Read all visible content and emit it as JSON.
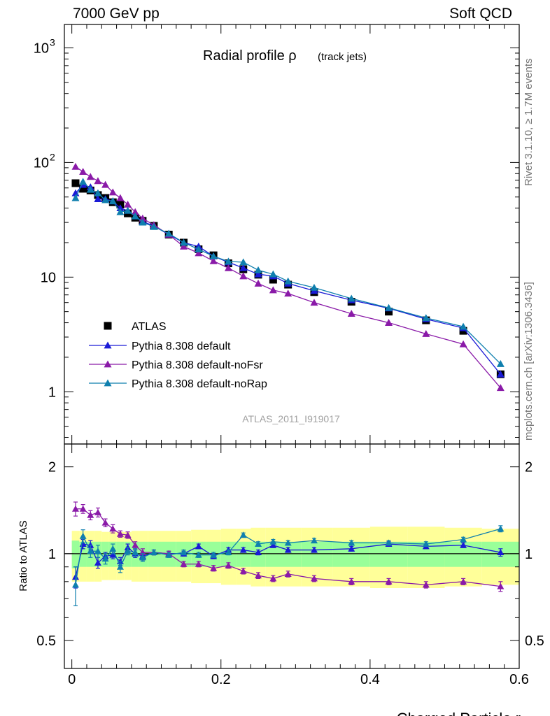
{
  "header": {
    "left": "7000 GeV pp",
    "right": "Soft QCD"
  },
  "side_labels": {
    "rivet": "Rivet 3.1.10, ≥ 1.7M events",
    "mcplots": "mcplots.cern.ch [arXiv:1306.3436]"
  },
  "chart_data": {
    "type": "scatter",
    "title_main": "Radial profile ρ",
    "title_sub": "(track jets)",
    "analysis_id": "ATLAS_2011_I919017",
    "xlabel": "Charged Particle r",
    "ratio_ylabel": "Ratio to ATLAS",
    "xlim": [
      -0.01,
      0.6
    ],
    "ylim_main": [
      0.35,
      1600
    ],
    "ylog_main": true,
    "ylim_ratio": [
      0.4,
      2.4
    ],
    "ylog_ratio": true,
    "x_ticks": [
      0,
      0.2,
      0.4,
      0.6
    ],
    "x_tick_labels": [
      "0",
      "0.2",
      "0.4",
      "0.6"
    ],
    "main_y_ticks": [
      1,
      10,
      100,
      1000
    ],
    "main_y_tick_labels": [
      "1",
      "10",
      "10",
      "10"
    ],
    "main_y_tick_exponents": [
      "",
      "",
      "2",
      "3"
    ],
    "ratio_y_ticks": [
      0.5,
      1,
      2
    ],
    "ratio_y_tick_labels": [
      "0.5",
      "1",
      "2"
    ],
    "legend_position": "bottom-left",
    "x": [
      0.005,
      0.015,
      0.025,
      0.035,
      0.045,
      0.055,
      0.065,
      0.075,
      0.085,
      0.095,
      0.11,
      0.13,
      0.15,
      0.17,
      0.19,
      0.21,
      0.23,
      0.25,
      0.27,
      0.29,
      0.325,
      0.375,
      0.425,
      0.475,
      0.525,
      0.575
    ],
    "series": [
      {
        "name": "ATLAS",
        "marker": "square",
        "color": "#000000",
        "values": [
          66,
          59,
          57,
          52,
          49,
          45,
          43,
          36,
          33,
          31,
          28,
          23.5,
          20,
          17.5,
          15.5,
          13.2,
          11.7,
          10.5,
          9.5,
          8.6,
          7.4,
          6.1,
          5.0,
          4.2,
          3.4,
          1.42
        ],
        "band_inner": [
          0.11,
          0.1,
          0.1,
          0.1,
          0.1,
          0.1,
          0.1,
          0.1,
          0.1,
          0.1,
          0.1,
          0.1,
          0.1,
          0.1,
          0.1,
          0.1,
          0.1,
          0.1,
          0.1,
          0.1,
          0.1,
          0.1,
          0.1,
          0.1,
          0.1,
          0.1
        ],
        "band_outer": [
          0.2,
          0.2,
          0.2,
          0.2,
          0.19,
          0.19,
          0.19,
          0.19,
          0.2,
          0.2,
          0.2,
          0.2,
          0.2,
          0.21,
          0.21,
          0.22,
          0.22,
          0.23,
          0.23,
          0.23,
          0.23,
          0.23,
          0.24,
          0.24,
          0.23,
          0.22
        ]
      },
      {
        "name": "Pythia 8.308 default",
        "marker": "triangle",
        "color": "#1a1ad6",
        "values": [
          54,
          64,
          61,
          48,
          48,
          46,
          40,
          38,
          34,
          30.5,
          28,
          23.5,
          20,
          18.5,
          15.2,
          13.5,
          12.0,
          10.6,
          10.2,
          8.8,
          7.6,
          6.3,
          5.35,
          4.3,
          3.6,
          1.42
        ],
        "ratio": [
          0.83,
          1.08,
          1.07,
          0.93,
          0.98,
          0.99,
          0.94,
          1.05,
          1.0,
          0.98,
          1.01,
          1.0,
          1.0,
          1.06,
          0.98,
          1.03,
          1.03,
          1.01,
          1.07,
          1.03,
          1.03,
          1.04,
          1.08,
          1.06,
          1.07,
          1.01
        ],
        "ratio_err": [
          0.07,
          0.04,
          0.04,
          0.04,
          0.03,
          0.03,
          0.03,
          0.03,
          0.03,
          0.03,
          0.02,
          0.02,
          0.02,
          0.02,
          0.02,
          0.02,
          0.02,
          0.02,
          0.02,
          0.02,
          0.02,
          0.02,
          0.02,
          0.02,
          0.02,
          0.03
        ]
      },
      {
        "name": "Pythia 8.308 default-noFsr",
        "marker": "triangle",
        "color": "#8a1aa8",
        "values": [
          92,
          83,
          75,
          69,
          64,
          55,
          49,
          43,
          37,
          32.5,
          28.5,
          23.5,
          18.5,
          16.2,
          13.8,
          12.0,
          10.2,
          8.8,
          7.7,
          7.2,
          6.0,
          4.8,
          4.0,
          3.2,
          2.6,
          1.08
        ],
        "ratio": [
          1.43,
          1.43,
          1.36,
          1.39,
          1.28,
          1.22,
          1.17,
          1.16,
          1.07,
          1.01,
          1.01,
          1.0,
          0.92,
          0.92,
          0.89,
          0.91,
          0.87,
          0.84,
          0.82,
          0.85,
          0.82,
          0.8,
          0.8,
          0.78,
          0.8,
          0.77
        ],
        "ratio_err": [
          0.08,
          0.05,
          0.05,
          0.05,
          0.04,
          0.04,
          0.03,
          0.03,
          0.03,
          0.03,
          0.02,
          0.02,
          0.02,
          0.02,
          0.02,
          0.02,
          0.02,
          0.02,
          0.02,
          0.02,
          0.02,
          0.02,
          0.02,
          0.02,
          0.02,
          0.03
        ]
      },
      {
        "name": "Pythia 8.308 default-noRap",
        "marker": "triangle",
        "color": "#0f7fae",
        "values": [
          49,
          68,
          58,
          54,
          47,
          46,
          37,
          38,
          34,
          30,
          27.5,
          24,
          20,
          17.5,
          15.2,
          13.7,
          13.5,
          11.5,
          10.6,
          9.2,
          8.1,
          6.5,
          5.4,
          4.4,
          3.7,
          1.75
        ],
        "ratio": [
          0.78,
          1.15,
          1.02,
          1.02,
          0.96,
          1.04,
          0.9,
          1.02,
          1.01,
          0.97,
          1.01,
          0.99,
          1.01,
          0.99,
          0.99,
          1.01,
          1.16,
          1.08,
          1.1,
          1.09,
          1.11,
          1.09,
          1.09,
          1.08,
          1.12,
          1.22
        ],
        "ratio_err": [
          0.12,
          0.06,
          0.05,
          0.05,
          0.04,
          0.04,
          0.04,
          0.03,
          0.03,
          0.03,
          0.02,
          0.02,
          0.02,
          0.02,
          0.02,
          0.02,
          0.02,
          0.02,
          0.02,
          0.02,
          0.02,
          0.02,
          0.02,
          0.02,
          0.02,
          0.03
        ]
      }
    ]
  }
}
